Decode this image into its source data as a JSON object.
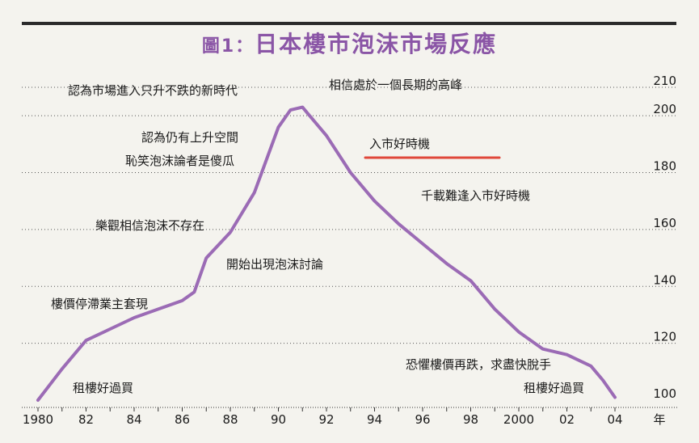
{
  "title": {
    "prefix": "圖1：",
    "text": "日本樓市泡沫市場反應"
  },
  "colors": {
    "line": "#9b6bb5",
    "title": "#8a55a6",
    "highlight": "#e0473a",
    "grid": "#555555"
  },
  "chart_data": {
    "type": "line",
    "title": "日本樓市泡沫市場反應",
    "xlabel": "年",
    "ylabel": "",
    "ylim": [
      100,
      210
    ],
    "yticks": [
      100,
      120,
      140,
      160,
      180,
      200,
      210
    ],
    "xticks": [
      {
        "value": 1980,
        "label": "1980"
      },
      {
        "value": 1982,
        "label": "82"
      },
      {
        "value": 1984,
        "label": "84"
      },
      {
        "value": 1986,
        "label": "86"
      },
      {
        "value": 1988,
        "label": "88"
      },
      {
        "value": 1990,
        "label": "90"
      },
      {
        "value": 1992,
        "label": "92"
      },
      {
        "value": 1994,
        "label": "94"
      },
      {
        "value": 1996,
        "label": "96"
      },
      {
        "value": 1998,
        "label": "98"
      },
      {
        "value": 2000,
        "label": "2000"
      },
      {
        "value": 2002,
        "label": "02"
      },
      {
        "value": 2004,
        "label": "04"
      }
    ],
    "xunit": "年",
    "series": [
      {
        "points": [
          [
            1980.0,
            100
          ],
          [
            1981.0,
            111
          ],
          [
            1982.0,
            121
          ],
          [
            1983.0,
            125
          ],
          [
            1984.0,
            129
          ],
          [
            1985.0,
            132
          ],
          [
            1986.0,
            135
          ],
          [
            1986.5,
            138
          ],
          [
            1987.0,
            150
          ],
          [
            1988.0,
            159
          ],
          [
            1989.0,
            173
          ],
          [
            1990.0,
            196
          ],
          [
            1990.5,
            202
          ],
          [
            1991.0,
            203
          ],
          [
            1992.0,
            193
          ],
          [
            1993.0,
            180
          ],
          [
            1994.0,
            170
          ],
          [
            1995.0,
            162
          ],
          [
            1996.0,
            155
          ],
          [
            1997.0,
            148
          ],
          [
            1998.0,
            142
          ],
          [
            1999.0,
            132
          ],
          [
            2000.0,
            124
          ],
          [
            2001.0,
            118
          ],
          [
            2002.0,
            116
          ],
          [
            2003.0,
            112
          ],
          [
            2003.5,
            107
          ],
          [
            2004.0,
            101
          ]
        ]
      }
    ],
    "annotations": [
      "認為市場進入只升不跌的新時代",
      "相信處於一個長期的高峰",
      "認為仍有上升空間",
      "入市好時機",
      "恥笑泡沫論者是傻瓜",
      "千載難逢入市好時機",
      "樂觀相信泡沫不存在",
      "開始出現泡沫討論",
      "樓價停滯業主套現",
      "恐懼樓價再跌，求盡快脫手",
      "租樓好過買",
      "租樓好過買"
    ]
  }
}
